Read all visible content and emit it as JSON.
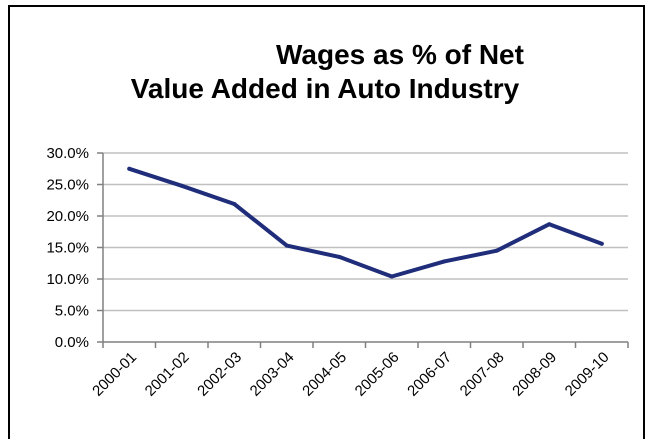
{
  "chart_data": {
    "type": "line",
    "title_line1": "Wages as % of Net",
    "title_line2": "Value Added in Auto Industry",
    "title": "Wages as % of Net Value Added in Auto Industry",
    "categories": [
      "2000-01",
      "2001-02",
      "2002-03",
      "2003-04",
      "2004-05",
      "2005-06",
      "2006-07",
      "2007-08",
      "2008-09",
      "2009-10"
    ],
    "series": [
      {
        "values": [
          27.5,
          24.8,
          21.9,
          15.3,
          13.5,
          10.4,
          12.8,
          14.5,
          18.7,
          15.6
        ],
        "color": "#1f2d7a"
      }
    ],
    "ylim": [
      0,
      30
    ],
    "yticks": [
      "0.0%",
      "5.0%",
      "10.0%",
      "15.0%",
      "20.0%",
      "25.0%",
      "30.0%"
    ],
    "ytick_values": [
      0,
      5,
      10,
      15,
      20,
      25,
      30
    ],
    "grid": true,
    "legend": "none"
  }
}
